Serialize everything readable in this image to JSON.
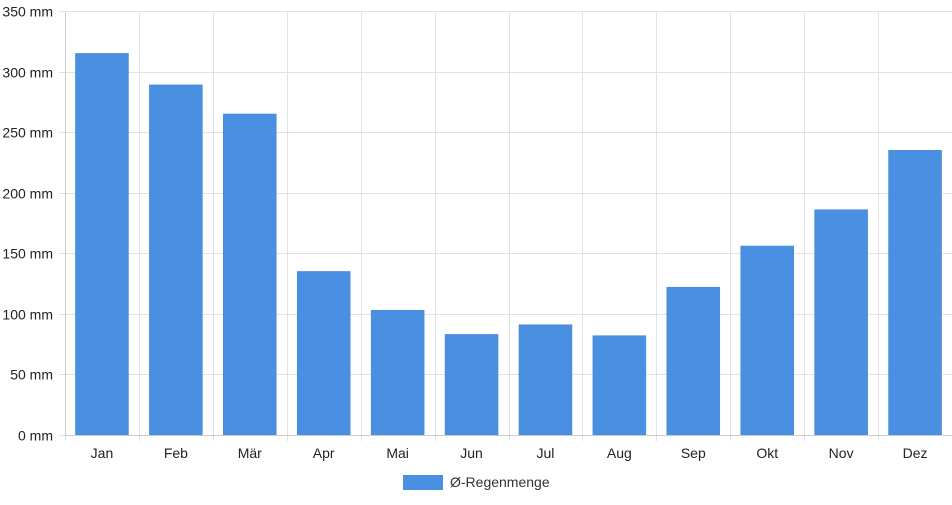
{
  "chart_data": {
    "type": "bar",
    "categories": [
      "Jan",
      "Feb",
      "Mär",
      "Apr",
      "Mai",
      "Jun",
      "Jul",
      "Aug",
      "Sep",
      "Okt",
      "Nov",
      "Dez"
    ],
    "series": [
      {
        "name": "Ø-Regenmenge",
        "values": [
          315,
          289,
          265,
          135,
          103,
          83,
          91,
          82,
          122,
          156,
          186,
          235
        ]
      }
    ],
    "y_ticks": [
      "0 mm",
      "50 mm",
      "100 mm",
      "150 mm",
      "200 mm",
      "250 mm",
      "300 mm",
      "350 mm"
    ],
    "ylim": [
      0,
      350
    ],
    "grid": true,
    "legend_position": "bottom",
    "colors": {
      "bar": "#4a90e2",
      "grid": "#e2e2e2",
      "axis": "#cccccc"
    }
  }
}
